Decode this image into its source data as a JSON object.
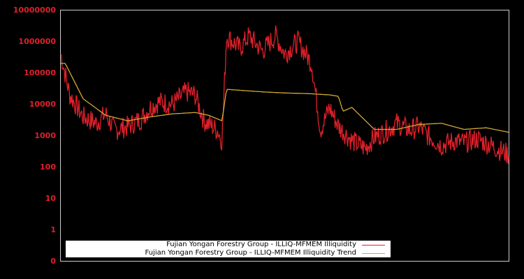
{
  "chart_data": {
    "type": "line",
    "title": "",
    "xlabel": "",
    "ylabel": "",
    "yscale": "log",
    "ylim": [
      0,
      10000000
    ],
    "y_tick_labels": [
      "10000000",
      "1000000",
      "100000",
      "10000",
      "1000",
      "100",
      "10",
      "1",
      "0"
    ],
    "x_tick_labels": [],
    "grid": false,
    "legend_position": "lower-left inside",
    "colors": {
      "series1": "#e0202a",
      "series2": "#d4a832",
      "axis_label": "#e0202a",
      "frame": "#cccccc",
      "background": "#000000"
    },
    "series": [
      {
        "name": "Fujian Yongan Forestry Group - ILLIQ-MFMEM Illiquidity",
        "x": [
          0,
          0.02,
          0.05,
          0.08,
          0.1,
          0.12,
          0.15,
          0.18,
          0.2,
          0.22,
          0.25,
          0.28,
          0.3,
          0.32,
          0.35,
          0.36,
          0.37,
          0.4,
          0.42,
          0.45,
          0.48,
          0.5,
          0.53,
          0.56,
          0.58,
          0.6,
          0.62,
          0.65,
          0.68,
          0.7,
          0.73,
          0.75,
          0.78,
          0.8,
          0.82,
          0.85,
          0.88,
          0.9,
          0.93,
          0.96,
          1.0
        ],
        "values": [
          400000,
          20000,
          4000,
          2500,
          5000,
          1500,
          2000,
          3500,
          8000,
          12000,
          10000,
          25000,
          20000,
          3000,
          1500,
          700,
          1500000,
          600000,
          1500000,
          500000,
          1500000,
          400000,
          1000000,
          200000,
          1500,
          8000,
          2000,
          700,
          400,
          900,
          1500,
          2500,
          1500,
          2000,
          1000,
          500,
          700,
          600,
          800,
          500,
          250
        ]
      },
      {
        "name": "Fujian Yongan Forestry Group - ILLIQ-MFMEM Illiquidity Trend",
        "x": [
          0,
          0.01,
          0.05,
          0.1,
          0.15,
          0.2,
          0.25,
          0.3,
          0.33,
          0.36,
          0.37,
          0.4,
          0.45,
          0.5,
          0.55,
          0.6,
          0.62,
          0.63,
          0.65,
          0.7,
          0.75,
          0.8,
          0.85,
          0.9,
          0.95,
          1.0
        ],
        "values": [
          200000,
          200000,
          15000,
          4500,
          3000,
          4000,
          5000,
          5500,
          4500,
          3000,
          30000,
          28000,
          25000,
          23000,
          22000,
          20000,
          18000,
          6000,
          8000,
          1600,
          1600,
          2300,
          2500,
          1600,
          1800,
          1300
        ]
      }
    ]
  },
  "legend": {
    "items": [
      {
        "label": "Fujian Yongan Forestry Group - ILLIQ-MFMEM Illiquidity",
        "color": "#e0202a"
      },
      {
        "label": "Fujian Yongan Forestry Group - ILLIQ-MFMEM Illiquidity Trend",
        "color": "#d4a832"
      }
    ]
  }
}
